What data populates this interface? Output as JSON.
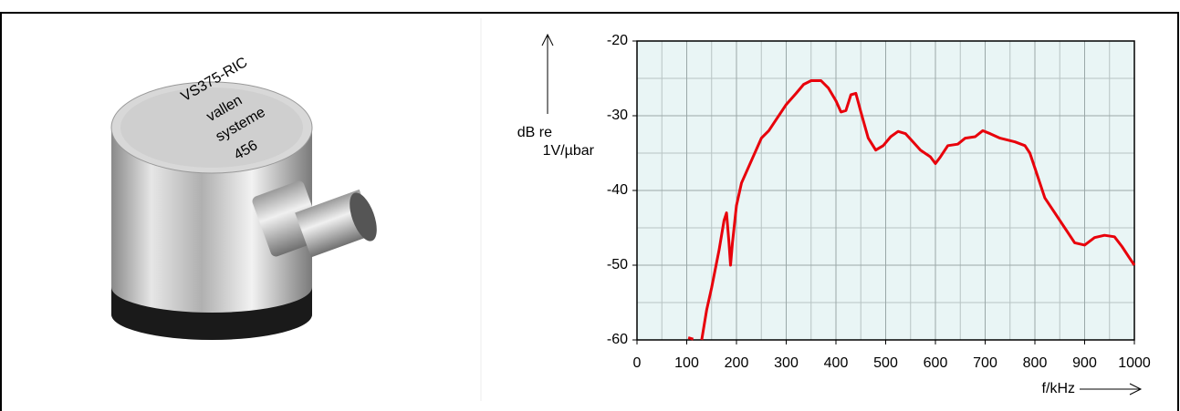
{
  "photo_labels": [
    "VS375-RIC",
    "vallen",
    "systeme",
    "456"
  ],
  "chart_data": {
    "type": "line",
    "ylabel": [
      "dB re",
      "1V/µbar"
    ],
    "xlabel": "f/kHz",
    "color": "#e8000b",
    "grid": true,
    "xlim": [
      0,
      1000
    ],
    "ylim": [
      -60,
      -20
    ],
    "xticks": [
      0,
      100,
      200,
      300,
      400,
      500,
      600,
      700,
      800,
      900,
      1000
    ],
    "yticks": [
      -20,
      -30,
      -40,
      -50,
      -60
    ],
    "x": [
      103,
      113,
      120,
      130,
      140,
      150,
      165,
      175,
      180,
      185,
      188,
      192,
      200,
      210,
      230,
      250,
      265,
      280,
      300,
      320,
      335,
      350,
      370,
      385,
      400,
      410,
      420,
      430,
      440,
      450,
      465,
      480,
      495,
      510,
      525,
      540,
      555,
      570,
      590,
      600,
      610,
      625,
      645,
      660,
      680,
      695,
      710,
      730,
      760,
      780,
      790,
      800,
      820,
      840,
      860,
      880,
      900,
      920,
      940,
      960,
      975,
      990,
      1000
    ],
    "values": [
      -59.7,
      -59.9,
      null,
      -60,
      -56,
      -53,
      -48,
      -44,
      -43,
      -47,
      -50,
      -47,
      -42,
      -39,
      -36,
      -33,
      -32,
      -30.5,
      -28.5,
      -27,
      -25.8,
      -25.3,
      -25.3,
      -26.3,
      -28,
      -29.5,
      -29.3,
      -27.2,
      -27,
      -29.5,
      -33,
      -34.6,
      -34,
      -32.8,
      -32.1,
      -32.4,
      -33.5,
      -34.6,
      -35.5,
      -36.4,
      -35.5,
      -34,
      -33.8,
      -33,
      -32.8,
      -32,
      -32.4,
      -33,
      -33.5,
      -34,
      -35,
      -37,
      -41,
      -43,
      -45,
      -47,
      -47.3,
      -46.3,
      -46,
      -46.2,
      -47.5,
      -49,
      -50
    ]
  }
}
